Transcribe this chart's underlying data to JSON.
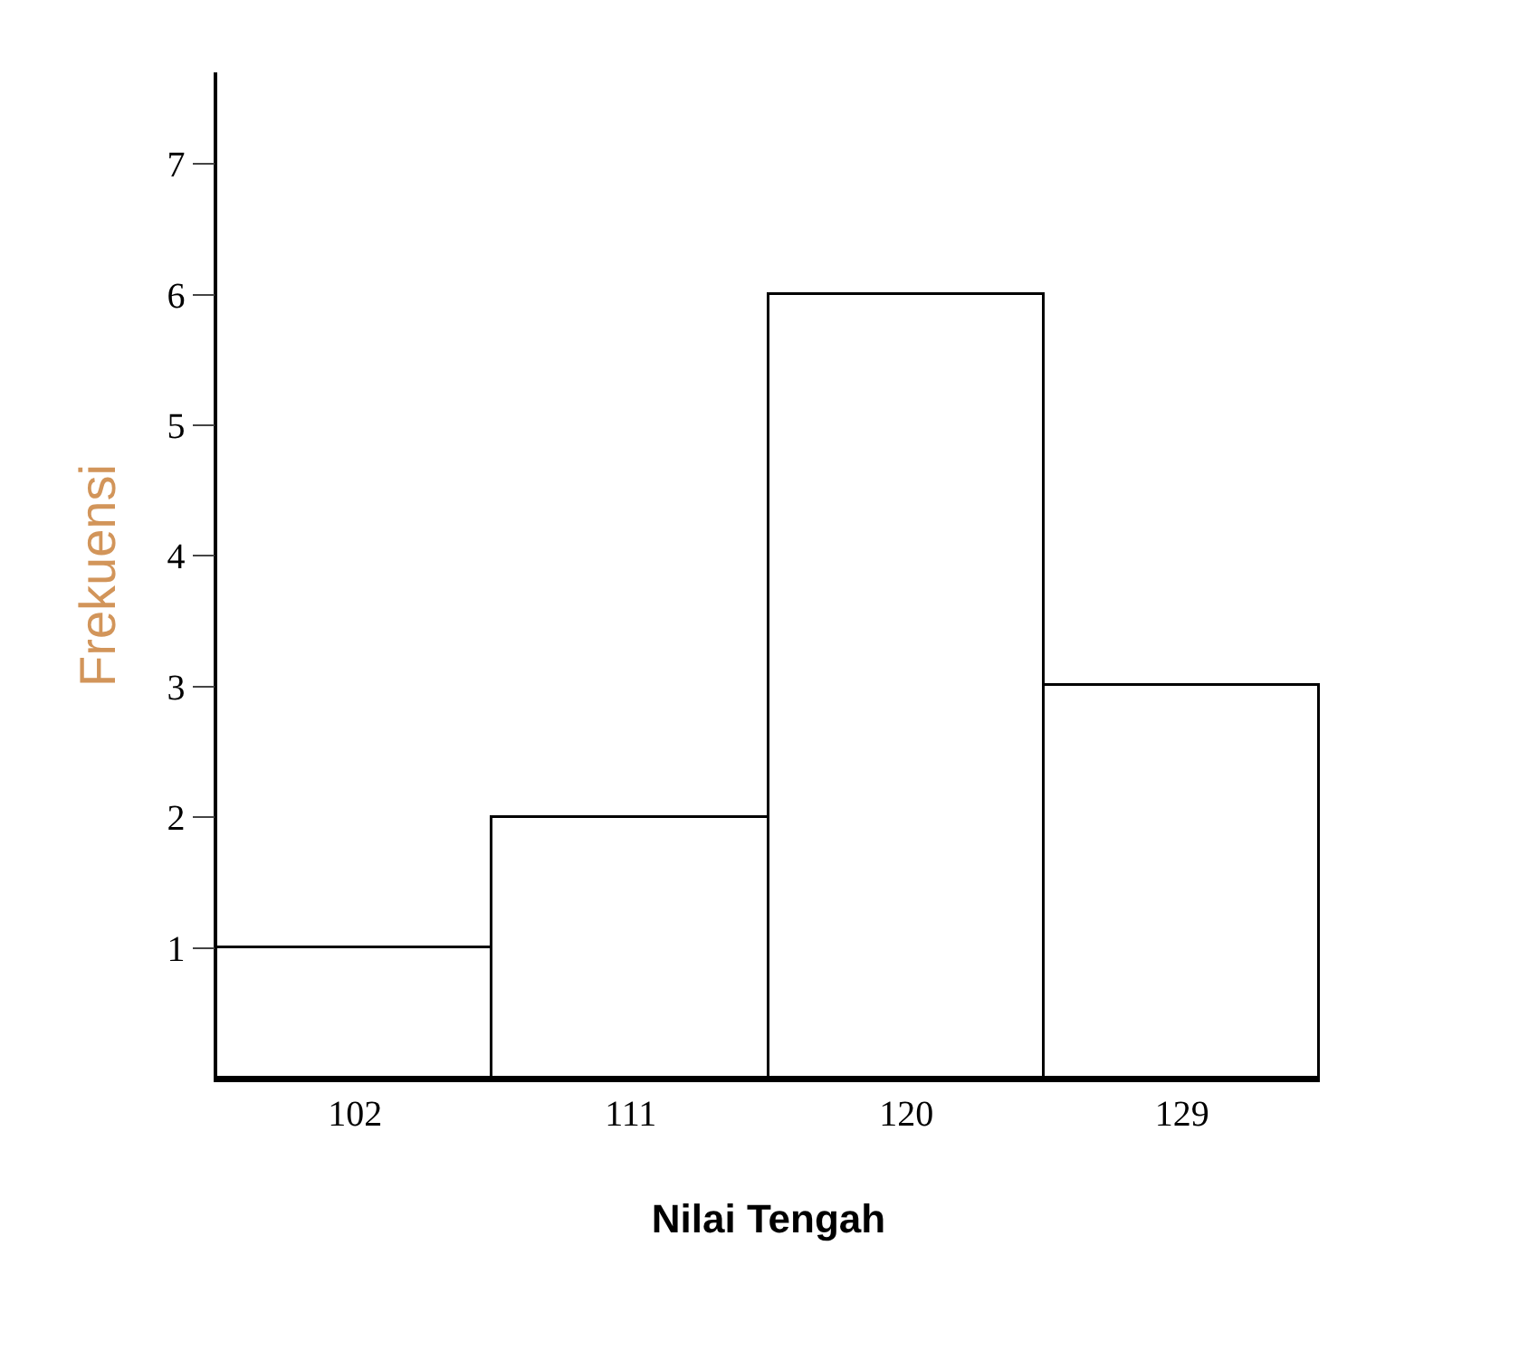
{
  "chart_data": {
    "type": "bar",
    "categories": [
      "102",
      "111",
      "120",
      "129"
    ],
    "values": [
      1,
      2,
      6,
      3
    ],
    "color": "#ffffff",
    "xlabel": "Nilai Tengah",
    "ylabel": "Frekuensi",
    "ylim": [
      0,
      7.7
    ],
    "yticks": [
      1,
      2,
      3,
      4,
      5,
      6,
      7
    ]
  }
}
